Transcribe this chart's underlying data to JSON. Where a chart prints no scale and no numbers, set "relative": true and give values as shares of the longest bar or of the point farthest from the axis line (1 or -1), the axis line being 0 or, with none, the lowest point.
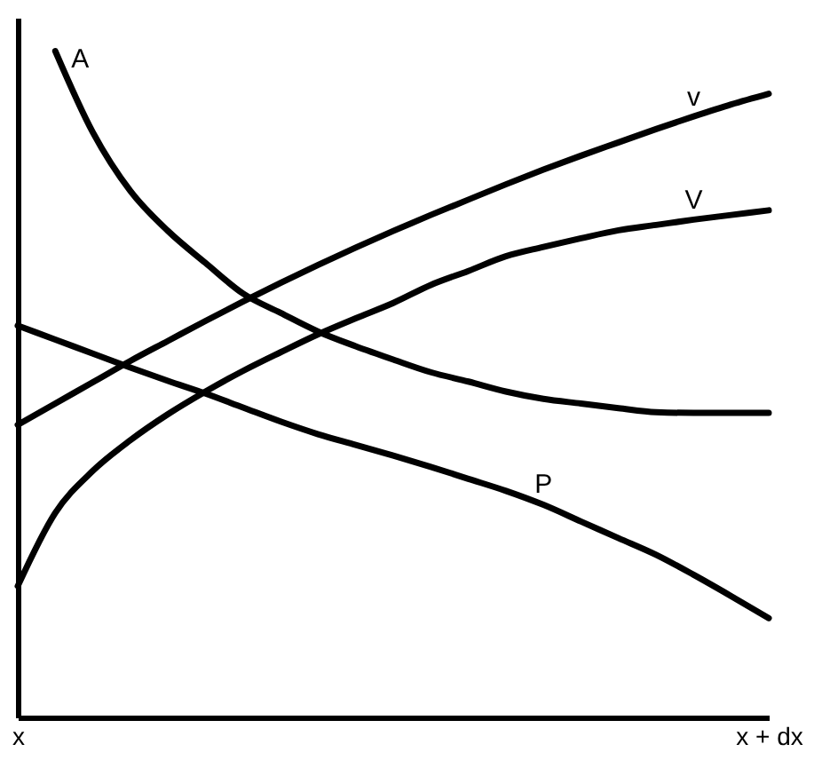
{
  "chart_data": {
    "type": "line",
    "relative": true,
    "grid": false,
    "tick_labels": "x",
    "line_style": "solid",
    "categories": [
      "x",
      null,
      null,
      null,
      null,
      null,
      null,
      null,
      null,
      null,
      null,
      null,
      null,
      null,
      null,
      null,
      null,
      null,
      null,
      null,
      "x + dx"
    ],
    "series": [
      {
        "name": "A",
        "color": "#000000",
        "values": [
          null,
          1.0,
          0.878,
          0.79,
          0.73,
          0.682,
          0.636,
          0.607,
          0.579,
          0.557,
          0.537,
          0.518,
          0.504,
          0.489,
          0.478,
          0.471,
          0.464,
          0.458,
          0.457,
          0.457,
          0.457
        ]
      },
      {
        "name": "v",
        "color": "#000000",
        "values": [
          0.439,
          0.471,
          0.503,
          0.535,
          0.565,
          0.595,
          0.624,
          0.652,
          0.679,
          0.705,
          0.73,
          0.754,
          0.777,
          0.8,
          0.822,
          0.843,
          0.863,
          0.883,
          0.902,
          0.92,
          0.936
        ]
      },
      {
        "name": "V",
        "color": "#000000",
        "values": [
          0.197,
          0.307,
          0.37,
          0.416,
          0.455,
          0.489,
          0.52,
          0.548,
          0.575,
          0.599,
          0.622,
          0.649,
          0.67,
          0.692,
          0.706,
          0.719,
          0.731,
          0.739,
          0.747,
          0.754,
          0.761
        ]
      },
      {
        "name": "P",
        "color": "#000000",
        "values": [
          0.588,
          0.567,
          0.546,
          0.525,
          0.505,
          0.486,
          0.465,
          0.444,
          0.425,
          0.409,
          0.393,
          0.376,
          0.358,
          0.34,
          0.319,
          0.294,
          0.269,
          0.244,
          0.214,
          0.182,
          0.149
        ]
      }
    ]
  }
}
